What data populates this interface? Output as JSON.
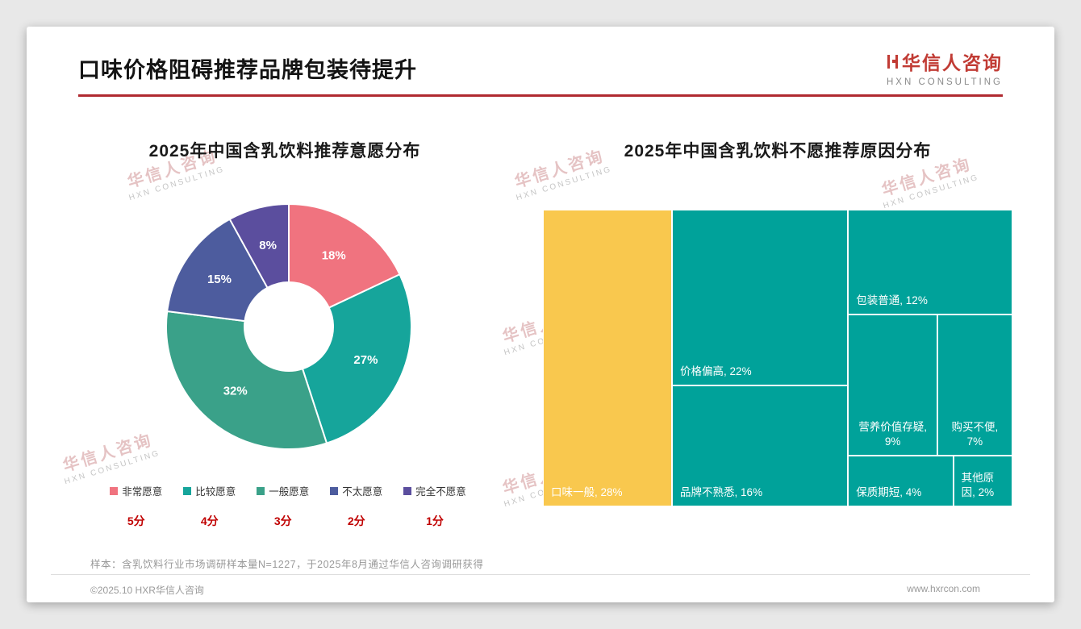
{
  "page": {
    "title": "口味价格阻碍推荐品牌包装待提升",
    "logo": {
      "name": "华信人咨询",
      "sub": "HXN CONSULTING"
    },
    "watermark": {
      "line1": "华信人咨询",
      "line2": "HXN CONSULTING"
    },
    "footnote": "样本：含乳饮料行业市场调研样本量N=1227，于2025年8月通过华信人咨询调研获得",
    "footer": {
      "left": "©2025.10 HXR华信人咨询",
      "right": "www.hxrcon.com"
    }
  },
  "chart_data": [
    {
      "type": "pie",
      "subtype": "donut",
      "title": "2025年中国含乳饮料推荐意愿分布",
      "unit": "%",
      "start_angle_deg": 0,
      "direction": "clockwise",
      "legend_position": "bottom",
      "series": [
        {
          "label": "非常愿意",
          "score": "5分",
          "value": 18,
          "color": "#F0737F"
        },
        {
          "label": "比较愿意",
          "score": "4分",
          "value": 27,
          "color": "#16A59B"
        },
        {
          "label": "一般愿意",
          "score": "3分",
          "value": 32,
          "color": "#3AA189"
        },
        {
          "label": "不太愿意",
          "score": "2分",
          "value": 15,
          "color": "#4D5C9E"
        },
        {
          "label": "完全不愿意",
          "score": "1分",
          "value": 8,
          "color": "#5B4E9E"
        }
      ]
    },
    {
      "type": "treemap",
      "title": "2025年中国含乳饮料不愿推荐原因分布",
      "unit": "%",
      "items": [
        {
          "label": "口味一般",
          "value": 28,
          "color": "#F9C84E"
        },
        {
          "label": "价格偏高",
          "value": 22,
          "color": "#00A29A"
        },
        {
          "label": "品牌不熟悉",
          "value": 16,
          "color": "#00A29A"
        },
        {
          "label": "包装普通",
          "value": 12,
          "color": "#00A29A"
        },
        {
          "label": "营养价值存疑",
          "value": 9,
          "color": "#00A29A"
        },
        {
          "label": "购买不便",
          "value": 7,
          "color": "#00A29A"
        },
        {
          "label": "保质期短",
          "value": 4,
          "color": "#00A29A"
        },
        {
          "label": "其他原因",
          "value": 2,
          "color": "#00A29A"
        }
      ]
    }
  ]
}
